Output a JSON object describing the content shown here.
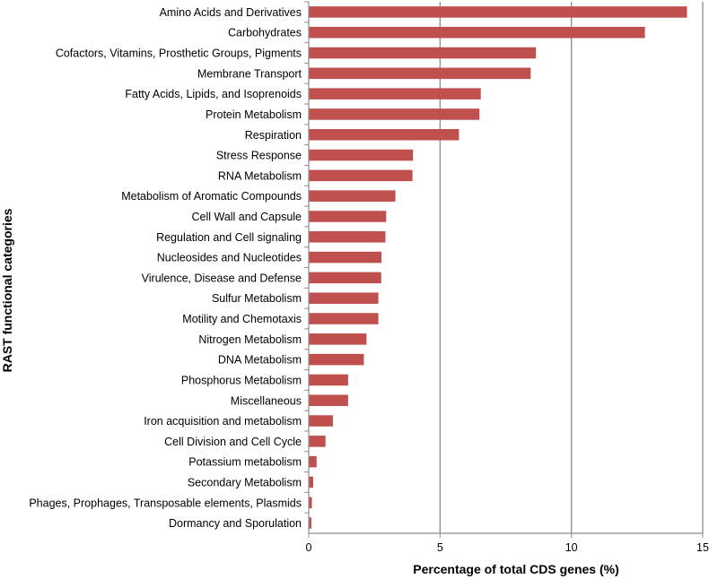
{
  "chart_data": {
    "type": "bar",
    "orientation": "horizontal",
    "title": "",
    "xlabel": "Percentage of total CDS genes (%)",
    "ylabel": "RAST functional categories",
    "xlim": [
      0,
      15
    ],
    "xticks": [
      0,
      5,
      10,
      15
    ],
    "grid": "vertical major gridlines",
    "bar_color": "#c0504d",
    "categories": [
      "Amino Acids and Derivatives",
      "Carbohydrates",
      "Cofactors, Vitamins, Prosthetic Groups, Pigments",
      "Membrane Transport",
      "Fatty Acids, Lipids, and Isoprenoids",
      "Protein Metabolism",
      "Respiration",
      "Stress Response",
      "RNA Metabolism",
      "Metabolism of Aromatic Compounds",
      "Cell Wall and Capsule",
      "Regulation and Cell signaling",
      "Nucleosides and Nucleotides",
      "Virulence, Disease and Defense",
      "Sulfur Metabolism",
      "Motility and Chemotaxis",
      "Nitrogen Metabolism",
      "DNA Metabolism",
      "Phosphorus Metabolism",
      "Miscellaneous",
      "Iron acquisition and metabolism",
      "Cell Division and Cell Cycle",
      "Potassium metabolism",
      "Secondary Metabolism",
      "Phages, Prophages, Transposable elements, Plasmids",
      "Dormancy and Sporulation"
    ],
    "values": [
      14.4,
      12.8,
      8.65,
      8.45,
      6.55,
      6.5,
      5.72,
      3.97,
      3.95,
      3.3,
      2.95,
      2.92,
      2.77,
      2.76,
      2.65,
      2.65,
      2.2,
      2.1,
      1.5,
      1.5,
      0.92,
      0.64,
      0.3,
      0.17,
      0.12,
      0.1
    ]
  }
}
